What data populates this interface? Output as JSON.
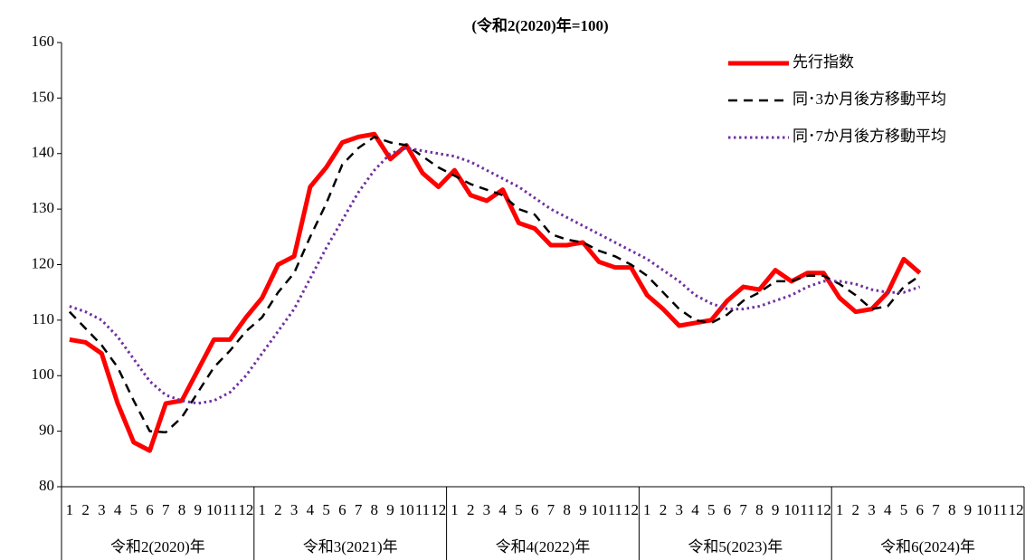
{
  "chart_data": {
    "type": "line",
    "title": "(令和2(2020)年=100)",
    "categories": [
      "1",
      "2",
      "3",
      "4",
      "5",
      "6",
      "7",
      "8",
      "9",
      "10",
      "11",
      "12",
      "1",
      "2",
      "3",
      "4",
      "5",
      "6",
      "7",
      "8",
      "9",
      "10",
      "11",
      "12",
      "1",
      "2",
      "3",
      "4",
      "5",
      "6",
      "7",
      "8",
      "9",
      "10",
      "11",
      "12",
      "1",
      "2",
      "3",
      "4",
      "5",
      "6",
      "7",
      "8",
      "9",
      "10",
      "11",
      "12",
      "1",
      "2",
      "3",
      "4",
      "5",
      "6",
      "7",
      "8",
      "9",
      "10",
      "11",
      "12"
    ],
    "year_groups": [
      "令和2(2020)年",
      "令和3(2021)年",
      "令和4(2022)年",
      "令和5(2023)年",
      "令和6(2024)年"
    ],
    "ylim": [
      80,
      160
    ],
    "yticks": [
      80,
      90,
      100,
      110,
      120,
      130,
      140,
      150,
      160
    ],
    "grid": false,
    "legend": "top-right",
    "series": [
      {
        "name": "先行指数",
        "color": "#ff0000",
        "style": "solid",
        "values": [
          106.5,
          106,
          104,
          95,
          88,
          86.5,
          95,
          95.5,
          101,
          106.5,
          106.5,
          110.5,
          114,
          120,
          121.5,
          134,
          137.5,
          142,
          143,
          143.5,
          139,
          141.5,
          136.5,
          134,
          137,
          132.5,
          131.5,
          133.5,
          127.5,
          126.5,
          123.5,
          123.5,
          124,
          120.5,
          119.5,
          119.5,
          114.5,
          112,
          109,
          109.5,
          110,
          113.5,
          116,
          115.5,
          119,
          117,
          118.5,
          118.5,
          114,
          111.5,
          112,
          115,
          121,
          118.5,
          null,
          null,
          null,
          null,
          null,
          null
        ]
      },
      {
        "name": "同･3か月後方移動平均",
        "color": "#000000",
        "style": "dashed",
        "values": [
          111.5,
          108.5,
          105.5,
          101.5,
          95.5,
          90,
          89.8,
          92.5,
          97,
          101.5,
          104.5,
          108,
          110.5,
          115,
          118.5,
          125,
          131,
          138,
          141,
          143,
          142,
          141.5,
          139.5,
          137.5,
          136,
          134.5,
          133.5,
          132.5,
          130,
          129,
          125.5,
          124.5,
          124,
          122.5,
          121.5,
          120,
          118,
          115,
          112,
          110,
          109.5,
          111,
          113.5,
          115,
          117,
          117,
          118,
          118,
          116.5,
          114.5,
          112,
          112.5,
          116,
          118,
          null,
          null,
          null,
          null,
          null,
          null
        ]
      },
      {
        "name": "同･7か月後方移動平均",
        "color": "#7030a0",
        "style": "dotted",
        "values": [
          112.5,
          111.5,
          110,
          107,
          103,
          99,
          96.5,
          95.5,
          95,
          95.5,
          97,
          100,
          104,
          108,
          112,
          117.5,
          123,
          128,
          133,
          137,
          140,
          141,
          140.5,
          140,
          139.5,
          138.5,
          137,
          135.5,
          134,
          132,
          130,
          128.5,
          127,
          125.5,
          124,
          122.5,
          121,
          119,
          117,
          114.5,
          113,
          112,
          112,
          112.5,
          113.5,
          114.5,
          116,
          117,
          117,
          116.5,
          115.5,
          115,
          115,
          116,
          null,
          null,
          null,
          null,
          null,
          null
        ]
      }
    ]
  }
}
